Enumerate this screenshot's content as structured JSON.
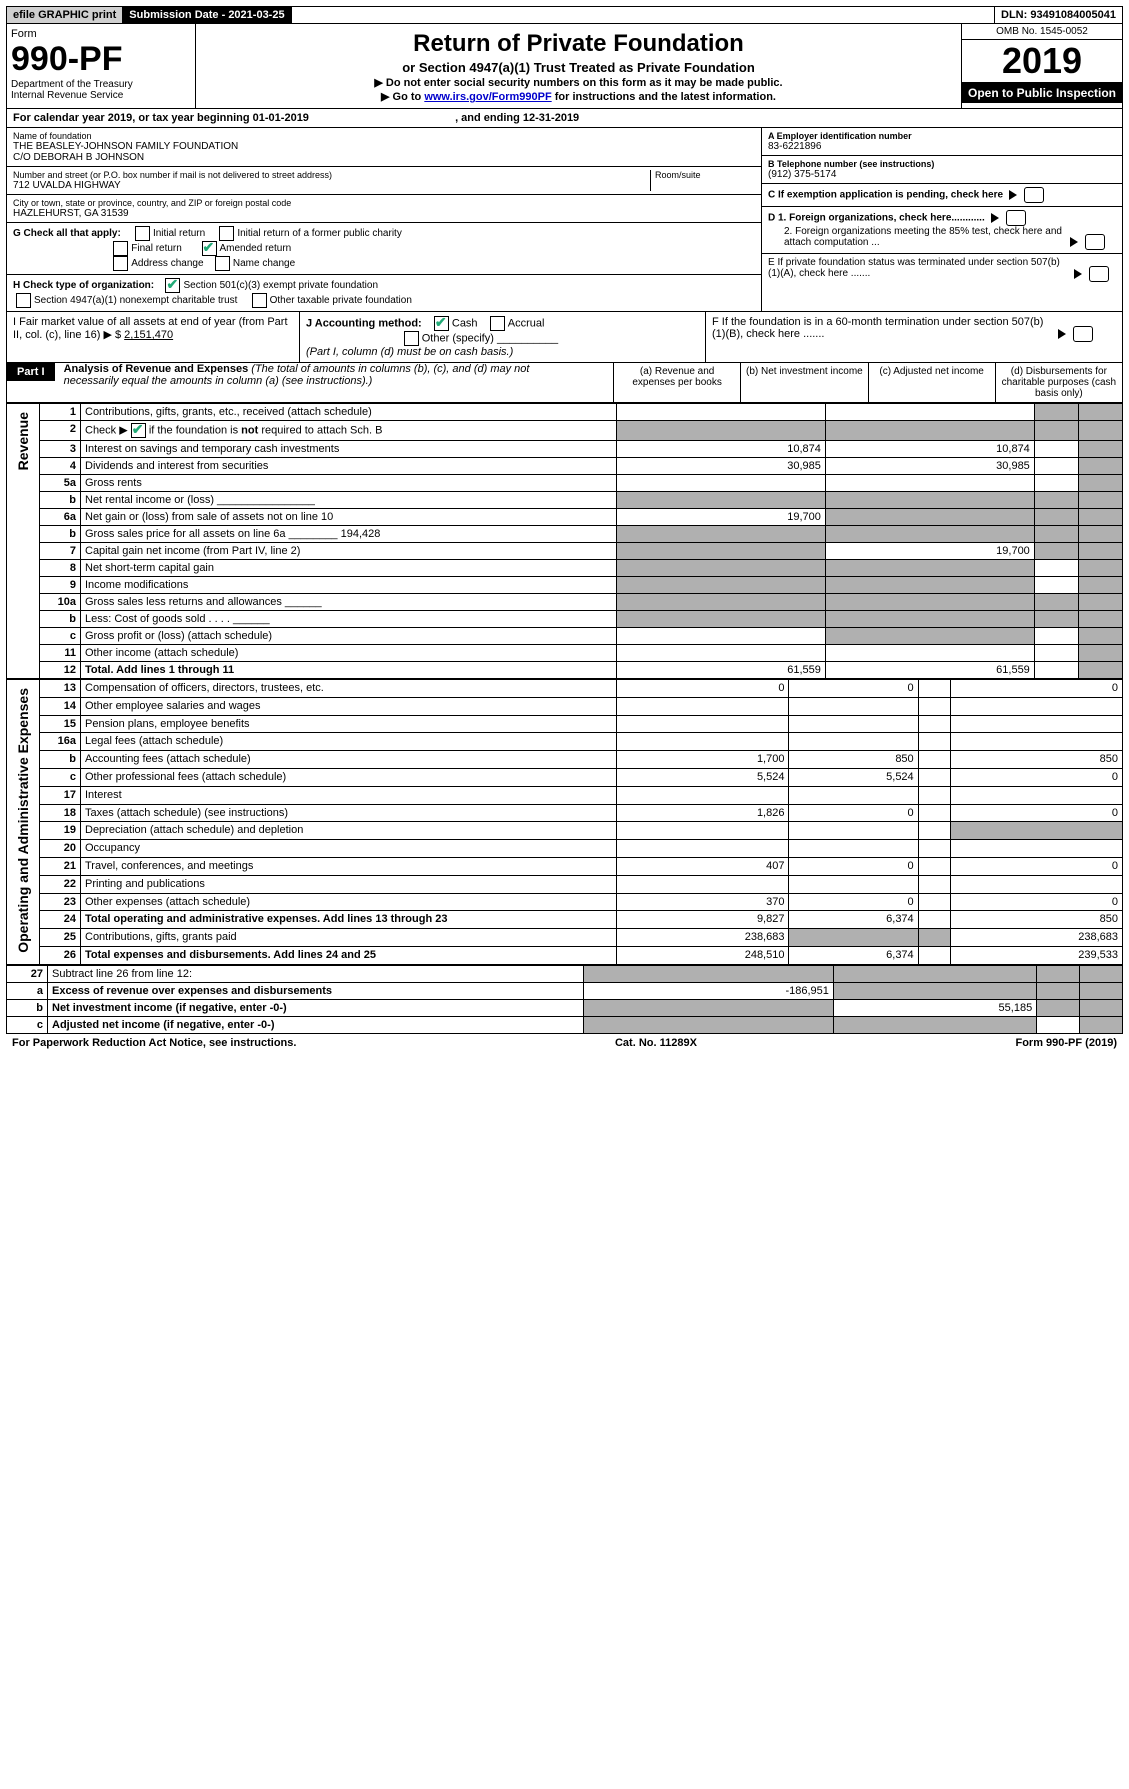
{
  "top": {
    "efile": "efile GRAPHIC print",
    "sub_label": "Submission Date - 2021-03-25",
    "dln": "DLN: 93491084005041"
  },
  "header": {
    "form_word": "Form",
    "form_no": "990-PF",
    "dept": "Department of the Treasury\nInternal Revenue Service",
    "title": "Return of Private Foundation",
    "subtitle": "or Section 4947(a)(1) Trust Treated as Private Foundation",
    "instr1": "▶ Do not enter social security numbers on this form as it may be made public.",
    "instr2_pre": "▶ Go to ",
    "instr2_link": "www.irs.gov/Form990PF",
    "instr2_post": " for instructions and the latest information.",
    "omb": "OMB No. 1545-0052",
    "year": "2019",
    "open": "Open to Public Inspection"
  },
  "cal": {
    "text_pre": "For calendar year 2019, or tax year beginning ",
    "begin": "01-01-2019",
    "text_mid": " , and ending ",
    "end": "12-31-2019"
  },
  "info": {
    "name_lab": "Name of foundation",
    "name": "THE BEASLEY-JOHNSON FAMILY FOUNDATION\nC/O DEBORAH B JOHNSON",
    "addr_lab": "Number and street (or P.O. box number if mail is not delivered to street address)",
    "room_lab": "Room/suite",
    "addr": "712 UVALDA HIGHWAY",
    "city_lab": "City or town, state or province, country, and ZIP or foreign postal code",
    "city": "HAZLEHURST, GA  31539",
    "a_lab": "A Employer identification number",
    "a_val": "83-6221896",
    "b_lab": "B Telephone number (see instructions)",
    "b_val": "(912) 375-5174",
    "c_lab": "C If exemption application is pending, check here",
    "d1": "D 1. Foreign organizations, check here............",
    "d2": "2. Foreign organizations meeting the 85% test, check here and attach computation ...",
    "e": "E  If private foundation status was terminated under section 507(b)(1)(A), check here .......",
    "f": "F  If the foundation is in a 60-month termination under section 507(b)(1)(B), check here .......",
    "g_lab": "G Check all that apply:",
    "g_opts": [
      "Initial return",
      "Initial return of a former public charity",
      "Final return",
      "Amended return",
      "Address change",
      "Name change"
    ],
    "h_lab": "H Check type of organization:",
    "h_opts": [
      "Section 501(c)(3) exempt private foundation",
      "Section 4947(a)(1) nonexempt charitable trust",
      "Other taxable private foundation"
    ],
    "i_lab": "I Fair market value of all assets at end of year (from Part II, col. (c), line 16) ▶ $ ",
    "i_val": "2,151,470",
    "j_lab": "J Accounting method:",
    "j_opts": [
      "Cash",
      "Accrual"
    ],
    "j_other": "Other (specify)",
    "j_note": "(Part I, column (d) must be on cash basis.)"
  },
  "part1": {
    "hdr": "Part I",
    "title": "Analysis of Revenue and Expenses",
    "title_note": "(The total of amounts in columns (b), (c), and (d) may not necessarily equal the amounts in column (a) (see instructions).)",
    "cols": {
      "a": "(a)   Revenue and expenses per books",
      "b": "(b)  Net investment income",
      "c": "(c)  Adjusted net income",
      "d": "(d)  Disbursements for charitable purposes (cash basis only)"
    }
  },
  "side": {
    "rev": "Revenue",
    "exp": "Operating and Administrative Expenses"
  },
  "rows": [
    {
      "n": "1",
      "d": "Contributions, gifts, grants, etc., received (attach schedule)",
      "a": "",
      "b": "",
      "c": "sh",
      "dd": "sh"
    },
    {
      "n": "2",
      "d": "Check ▶ ☑ if the foundation is not required to attach Sch. B",
      "a": "sh",
      "b": "sh",
      "c": "sh",
      "dd": "sh",
      "bold_not": true
    },
    {
      "n": "3",
      "d": "Interest on savings and temporary cash investments",
      "a": "10,874",
      "b": "10,874",
      "c": "",
      "dd": "sh"
    },
    {
      "n": "4",
      "d": "Dividends and interest from securities",
      "a": "30,985",
      "b": "30,985",
      "c": "",
      "dd": "sh"
    },
    {
      "n": "5a",
      "d": "Gross rents",
      "a": "",
      "b": "",
      "c": "",
      "dd": "sh"
    },
    {
      "n": "b",
      "d": "Net rental income or (loss)  ________________",
      "a": "sh",
      "b": "sh",
      "c": "sh",
      "dd": "sh"
    },
    {
      "n": "6a",
      "d": "Net gain or (loss) from sale of assets not on line 10",
      "a": "19,700",
      "b": "sh",
      "c": "sh",
      "dd": "sh"
    },
    {
      "n": "b",
      "d": "Gross sales price for all assets on line 6a ________ 194,428",
      "a": "sh",
      "b": "sh",
      "c": "sh",
      "dd": "sh"
    },
    {
      "n": "7",
      "d": "Capital gain net income (from Part IV, line 2)",
      "a": "sh",
      "b": "19,700",
      "c": "sh",
      "dd": "sh"
    },
    {
      "n": "8",
      "d": "Net short-term capital gain",
      "a": "sh",
      "b": "sh",
      "c": "",
      "dd": "sh"
    },
    {
      "n": "9",
      "d": "Income modifications",
      "a": "sh",
      "b": "sh",
      "c": "",
      "dd": "sh"
    },
    {
      "n": "10a",
      "d": "Gross sales less returns and allowances  ______",
      "a": "sh",
      "b": "sh",
      "c": "sh",
      "dd": "sh"
    },
    {
      "n": "b",
      "d": "Less: Cost of goods sold   . . . .  ______",
      "a": "sh",
      "b": "sh",
      "c": "sh",
      "dd": "sh"
    },
    {
      "n": "c",
      "d": "Gross profit or (loss) (attach schedule)",
      "a": "",
      "b": "sh",
      "c": "",
      "dd": "sh"
    },
    {
      "n": "11",
      "d": "Other income (attach schedule)",
      "a": "",
      "b": "",
      "c": "",
      "dd": "sh"
    },
    {
      "n": "12",
      "d": "Total. Add lines 1 through 11",
      "a": "61,559",
      "b": "61,559",
      "c": "",
      "dd": "sh",
      "bold": true
    }
  ],
  "exp_rows": [
    {
      "n": "13",
      "d": "Compensation of officers, directors, trustees, etc.",
      "a": "0",
      "b": "0",
      "c": "",
      "dd": "0"
    },
    {
      "n": "14",
      "d": "Other employee salaries and wages",
      "a": "",
      "b": "",
      "c": "",
      "dd": ""
    },
    {
      "n": "15",
      "d": "Pension plans, employee benefits",
      "a": "",
      "b": "",
      "c": "",
      "dd": ""
    },
    {
      "n": "16a",
      "d": "Legal fees (attach schedule)",
      "a": "",
      "b": "",
      "c": "",
      "dd": ""
    },
    {
      "n": "b",
      "d": "Accounting fees (attach schedule)",
      "a": "1,700",
      "b": "850",
      "c": "",
      "dd": "850"
    },
    {
      "n": "c",
      "d": "Other professional fees (attach schedule)",
      "a": "5,524",
      "b": "5,524",
      "c": "",
      "dd": "0"
    },
    {
      "n": "17",
      "d": "Interest",
      "a": "",
      "b": "",
      "c": "",
      "dd": ""
    },
    {
      "n": "18",
      "d": "Taxes (attach schedule) (see instructions)",
      "a": "1,826",
      "b": "0",
      "c": "",
      "dd": "0"
    },
    {
      "n": "19",
      "d": "Depreciation (attach schedule) and depletion",
      "a": "",
      "b": "",
      "c": "",
      "dd": "sh"
    },
    {
      "n": "20",
      "d": "Occupancy",
      "a": "",
      "b": "",
      "c": "",
      "dd": ""
    },
    {
      "n": "21",
      "d": "Travel, conferences, and meetings",
      "a": "407",
      "b": "0",
      "c": "",
      "dd": "0"
    },
    {
      "n": "22",
      "d": "Printing and publications",
      "a": "",
      "b": "",
      "c": "",
      "dd": ""
    },
    {
      "n": "23",
      "d": "Other expenses (attach schedule)",
      "a": "370",
      "b": "0",
      "c": "",
      "dd": "0"
    },
    {
      "n": "24",
      "d": "Total operating and administrative expenses. Add lines 13 through 23",
      "a": "9,827",
      "b": "6,374",
      "c": "",
      "dd": "850",
      "bold": true
    },
    {
      "n": "25",
      "d": "Contributions, gifts, grants paid",
      "a": "238,683",
      "b": "sh",
      "c": "sh",
      "dd": "238,683"
    },
    {
      "n": "26",
      "d": "Total expenses and disbursements. Add lines 24 and 25",
      "a": "248,510",
      "b": "6,374",
      "c": "",
      "dd": "239,533",
      "bold": true
    }
  ],
  "sub_rows": [
    {
      "n": "27",
      "d": "Subtract line 26 from line 12:",
      "a": "sh",
      "b": "sh",
      "c": "sh",
      "dd": "sh"
    },
    {
      "n": "a",
      "d": "Excess of revenue over expenses and disbursements",
      "a": "-186,951",
      "b": "sh",
      "c": "sh",
      "dd": "sh",
      "bold": true
    },
    {
      "n": "b",
      "d": "Net investment income (if negative, enter -0-)",
      "a": "sh",
      "b": "55,185",
      "c": "sh",
      "dd": "sh",
      "bold": true
    },
    {
      "n": "c",
      "d": "Adjusted net income (if negative, enter -0-)",
      "a": "sh",
      "b": "sh",
      "c": "",
      "dd": "sh",
      "bold": true
    }
  ],
  "footer": {
    "left": "For Paperwork Reduction Act Notice, see instructions.",
    "mid": "Cat. No. 11289X",
    "right": "Form 990-PF (2019)"
  }
}
